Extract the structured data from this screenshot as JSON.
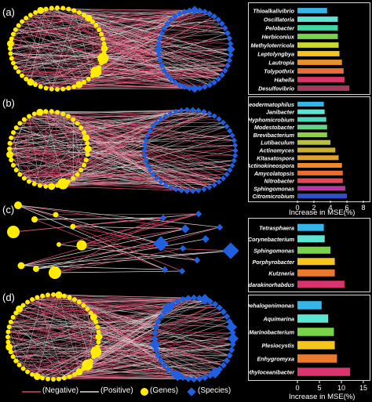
{
  "panels": [
    {
      "label": "(a)",
      "chart_data": {
        "type": "bar",
        "orientation": "horizontal",
        "categories": [
          "Thioalkalivibrio",
          "Oscillatoria",
          "Pelobacter",
          "Herbiconiux",
          "Methyloterricola",
          "Leptolyngbya",
          "Lautropia",
          "Tolypothrix",
          "Hahella",
          "Desulfovibrio"
        ],
        "values": [
          3.6,
          4.9,
          4.9,
          4.9,
          5.0,
          5.1,
          5.4,
          5.6,
          5.7,
          6.3
        ],
        "colors": [
          "#34b6e8",
          "#5fe3d5",
          "#3ed6a4",
          "#78d24a",
          "#cbd92e",
          "#f6c51c",
          "#e8922e",
          "#e86f33",
          "#d9346e",
          "#a23a5c"
        ],
        "xlim": [
          0,
          8
        ],
        "xticks": [],
        "xlabel": ""
      }
    },
    {
      "label": "(b)",
      "chart_data": {
        "type": "bar",
        "orientation": "horizontal",
        "categories": [
          "Geodermatophilus",
          "Janibacter",
          "Hyphomicrobium",
          "Modestobacter",
          "Brevibacterium",
          "Lutibaculum",
          "Actinomyces",
          "Kitasatospora",
          "Actinokineospora",
          "Amycolatopsis",
          "Nitrobacter",
          "Sphingomonas",
          "Citromicrobium"
        ],
        "values": [
          3.2,
          3.3,
          3.5,
          3.6,
          3.6,
          4.0,
          4.6,
          5.0,
          5.4,
          5.5,
          5.5,
          5.8,
          6.0
        ],
        "colors": [
          "#34b6e8",
          "#5fe3d5",
          "#4fd6b8",
          "#62d28a",
          "#8fd24a",
          "#b8c240",
          "#c9b030",
          "#e5a02a",
          "#ea8a28",
          "#ec6d2e",
          "#e0485c",
          "#b53aa0",
          "#2f4fc8"
        ],
        "xlim": [
          0,
          8
        ],
        "xticks": [
          0,
          2,
          4,
          6,
          8
        ],
        "xlabel": "Increase in  MSE(%)"
      }
    },
    {
      "label": "(c)",
      "chart_data": {
        "type": "bar",
        "orientation": "horizontal",
        "categories": [
          "Tetrasphaera",
          "Corynebacterium",
          "Sphingomonas",
          "Porphyrobacter",
          "Kutzneria",
          "Sandarakinorhabdus"
        ],
        "values": [
          6.0,
          6.2,
          7.5,
          8.5,
          8.5,
          10.7
        ],
        "colors": [
          "#34b6e8",
          "#5fe3d5",
          "#78d24a",
          "#f6c51c",
          "#ea7b2e",
          "#d9346e"
        ],
        "xlim": [
          0,
          15
        ],
        "xticks": [],
        "xlabel": ""
      }
    },
    {
      "label": "(d)",
      "chart_data": {
        "type": "bar",
        "orientation": "horizontal",
        "categories": [
          "Dehalogenimonas",
          "Aquimarina",
          "Marinobacterium",
          "Plesiocystis",
          "Enhygromyxa",
          "Methyloceanibacter"
        ],
        "values": [
          5.5,
          7.0,
          8.3,
          8.5,
          9.0,
          12.0
        ],
        "colors": [
          "#34b6e8",
          "#5fe3d5",
          "#78d24a",
          "#f6c51c",
          "#ea7b2e",
          "#d9346e"
        ],
        "xlim": [
          0,
          15
        ],
        "xticks": [
          0,
          5,
          10,
          15
        ],
        "xlabel": "Increase in  MSE(%)"
      }
    }
  ],
  "legend": {
    "negative": "(Negative)",
    "positive": "(Positive)",
    "genes": "(Genes)",
    "species": "(Species)",
    "colors": {
      "negative": "#d4486a",
      "positive": "#dddddd",
      "genes": "#ffec00",
      "species": "#1f5fe0"
    }
  }
}
